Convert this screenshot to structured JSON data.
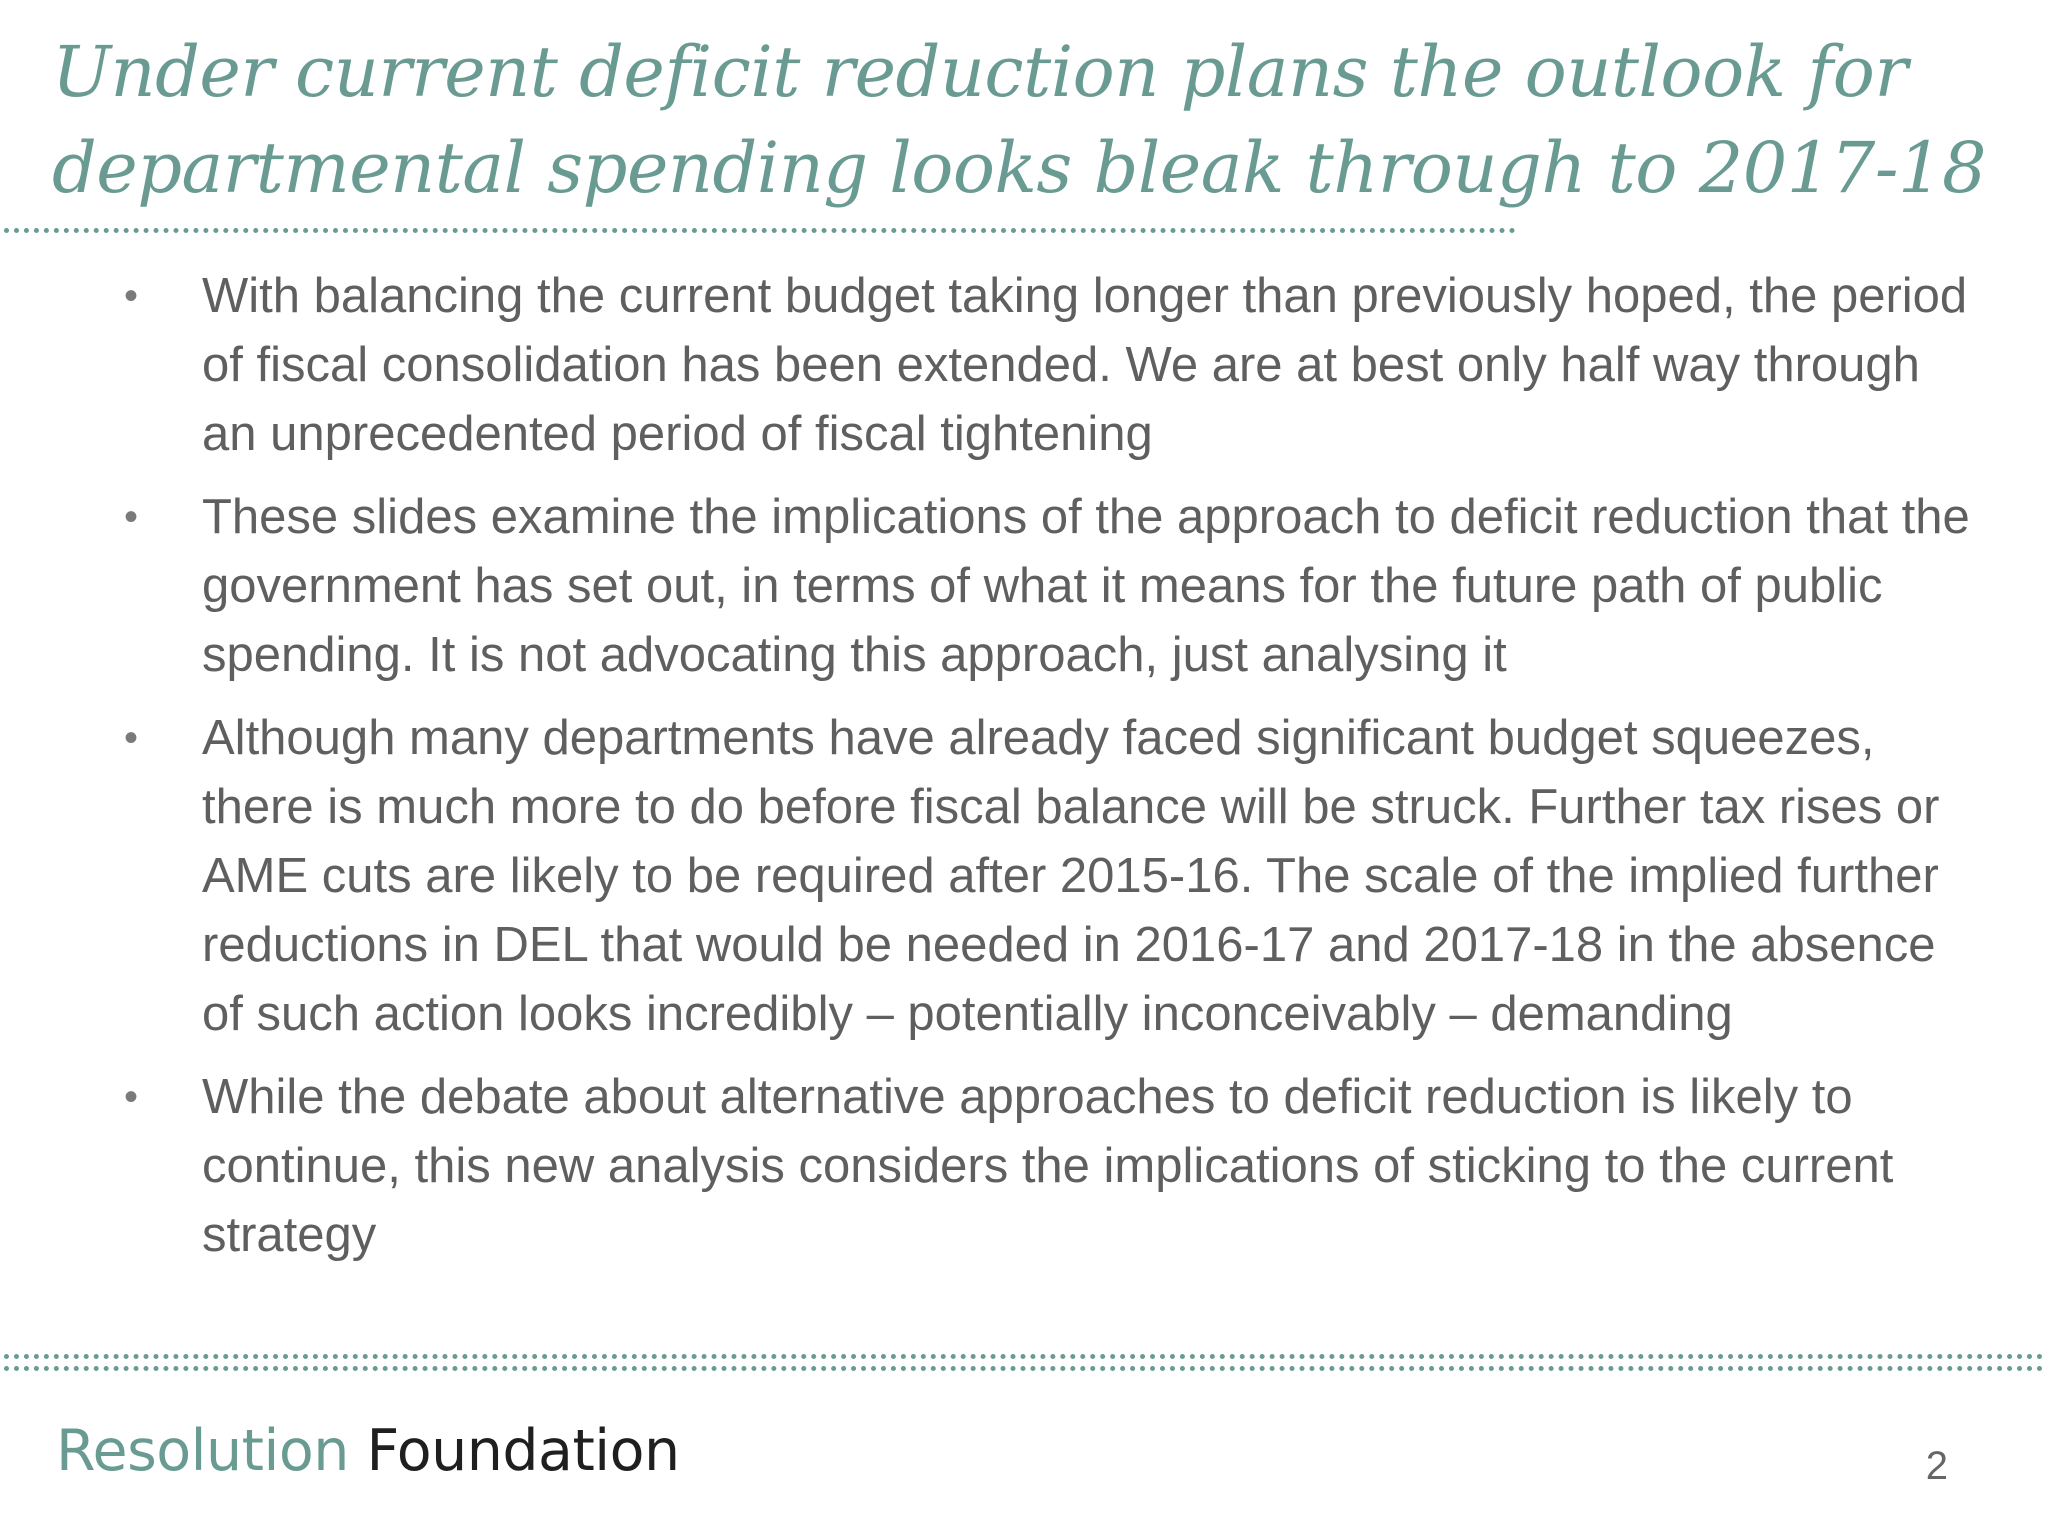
{
  "slide": {
    "title_lines": [
      "Under current deficit reduction plans the outlook for",
      "departmental spending looks bleak through to 2017-18"
    ],
    "bullet_marker": "•",
    "bullets": [
      "With balancing the current budget taking longer than previously hoped, the period of fiscal consolidation has been extended. We are at best only half way through an unprecedented period of fiscal tightening",
      "These slides examine the implications of the approach to deficit reduction that the government has set out, in terms of what it means for the future path of public spending. It is not advocating this approach, just analysing it",
      "Although many departments have already faced significant budget squeezes, there is much more to do before fiscal balance will be struck. Further tax rises or AME cuts are likely to be required after 2015-16. The scale of the implied further reductions in DEL that would be needed in 2016-17 and 2017-18 in the absence of such action looks incredibly – potentially inconceivably – demanding",
      "While the debate about alternative approaches to deficit reduction is likely to continue, this new analysis considers the implications of sticking to the current strategy"
    ]
  },
  "footer": {
    "logo_word_1": "Resolution",
    "logo_word_2": "Foundation",
    "page_number": "2"
  },
  "colors": {
    "accent": "#6a9b93",
    "body_text": "#5f5f5f",
    "logo_dark": "#1f1f1f"
  }
}
